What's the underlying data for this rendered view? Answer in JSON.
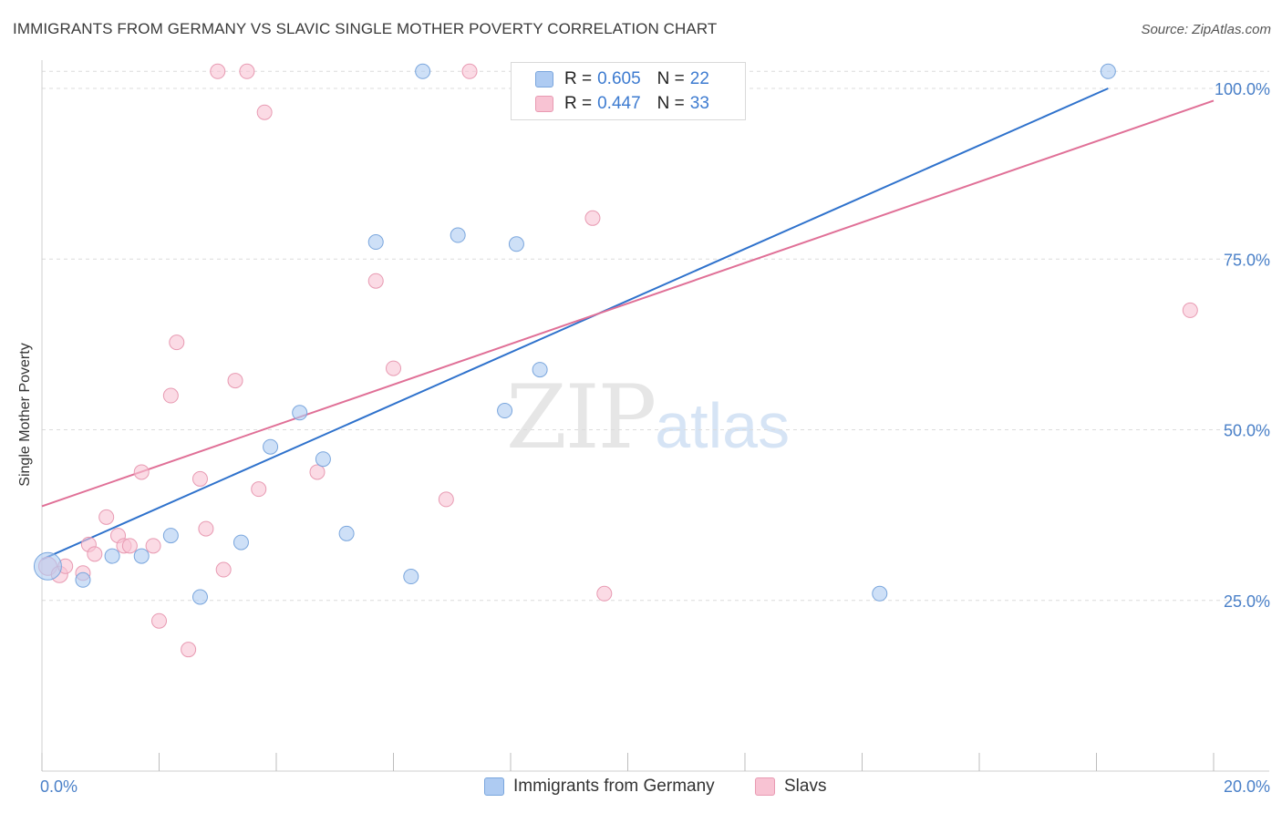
{
  "title": "IMMIGRANTS FROM GERMANY VS SLAVIC SINGLE MOTHER POVERTY CORRELATION CHART",
  "source": "Source: ZipAtlas.com",
  "watermark": {
    "zip": "ZIP",
    "atlas": "atlas"
  },
  "legend_top": [
    {
      "r_label": "R =",
      "r_value": "0.605",
      "n_label": "N =",
      "n_value": "22"
    },
    {
      "r_label": "R =",
      "r_value": "0.447",
      "n_label": "N =",
      "n_value": "33"
    }
  ],
  "colors": {
    "germany_fill": "#aecbf2",
    "germany_stroke": "#7aa6dd",
    "germany_line": "#2f72cc",
    "slavs_fill": "#f8c3d3",
    "slavs_stroke": "#e89ab2",
    "slavs_line": "#e07097",
    "tick_text": "#4a80c8",
    "grid": "#dcdcdc"
  },
  "chart_data": {
    "type": "scatter",
    "title": "IMMIGRANTS FROM GERMANY VS SLAVIC SINGLE MOTHER POVERTY CORRELATION CHART",
    "xlabel": "",
    "ylabel": "Single Mother Poverty",
    "xlim": [
      0,
      20
    ],
    "ylim": [
      0,
      100
    ],
    "x_tick_labels": [
      "0.0%",
      "20.0%"
    ],
    "y_tick_labels": [
      "25.0%",
      "50.0%",
      "75.0%",
      "100.0%"
    ],
    "y_ticks": [
      25,
      50,
      75,
      100
    ],
    "grid": true,
    "legend_position": "bottom",
    "series": [
      {
        "name": "Immigrants from Germany",
        "r": 0.605,
        "n": 22,
        "trend": [
          [
            0,
            31.0
          ],
          [
            18.2,
            100.0
          ]
        ],
        "points": [
          [
            0.1,
            30.0,
            15
          ],
          [
            0.7,
            28.0,
            8
          ],
          [
            1.2,
            31.5,
            8
          ],
          [
            1.7,
            31.5,
            8
          ],
          [
            2.2,
            34.5,
            8
          ],
          [
            2.7,
            25.5,
            8
          ],
          [
            3.4,
            33.5,
            8
          ],
          [
            3.9,
            47.5,
            8
          ],
          [
            4.4,
            52.5,
            8
          ],
          [
            4.8,
            45.7,
            8
          ],
          [
            5.2,
            34.8,
            8
          ],
          [
            5.7,
            77.5,
            8
          ],
          [
            6.3,
            28.5,
            8
          ],
          [
            6.5,
            102.5,
            8
          ],
          [
            7.1,
            78.5,
            8
          ],
          [
            7.9,
            52.8,
            8
          ],
          [
            8.1,
            77.2,
            8
          ],
          [
            8.5,
            58.8,
            8
          ],
          [
            10.4,
            102.5,
            8
          ],
          [
            10.5,
            102.5,
            8
          ],
          [
            14.3,
            26.0,
            8
          ],
          [
            18.2,
            102.5,
            8
          ]
        ]
      },
      {
        "name": "Slavs",
        "r": 0.447,
        "n": 33,
        "trend": [
          [
            0,
            38.8
          ],
          [
            20,
            98.2
          ]
        ],
        "points": [
          [
            0.1,
            30.0,
            10
          ],
          [
            0.3,
            28.8,
            9
          ],
          [
            0.4,
            30.0,
            8
          ],
          [
            0.7,
            29.0,
            8
          ],
          [
            0.8,
            33.2,
            8
          ],
          [
            0.9,
            31.8,
            8
          ],
          [
            1.1,
            37.2,
            8
          ],
          [
            1.3,
            34.5,
            8
          ],
          [
            1.4,
            33.0,
            8
          ],
          [
            1.5,
            33.0,
            8
          ],
          [
            1.7,
            43.8,
            8
          ],
          [
            1.9,
            33.0,
            8
          ],
          [
            2.0,
            22.0,
            8
          ],
          [
            2.2,
            55.0,
            8
          ],
          [
            2.3,
            62.8,
            8
          ],
          [
            2.5,
            17.8,
            8
          ],
          [
            2.7,
            42.8,
            8
          ],
          [
            2.8,
            35.5,
            8
          ],
          [
            3.0,
            102.5,
            8
          ],
          [
            3.1,
            29.5,
            8
          ],
          [
            3.3,
            57.2,
            8
          ],
          [
            3.5,
            102.5,
            8
          ],
          [
            3.7,
            41.3,
            8
          ],
          [
            3.8,
            96.5,
            8
          ],
          [
            4.7,
            43.8,
            8
          ],
          [
            5.7,
            71.8,
            8
          ],
          [
            6.0,
            59.0,
            8
          ],
          [
            6.9,
            39.8,
            8
          ],
          [
            7.3,
            102.5,
            8
          ],
          [
            9.4,
            81.0,
            8
          ],
          [
            9.6,
            26.0,
            8
          ],
          [
            10.4,
            102.5,
            8
          ],
          [
            19.6,
            67.5,
            8
          ]
        ]
      }
    ]
  }
}
